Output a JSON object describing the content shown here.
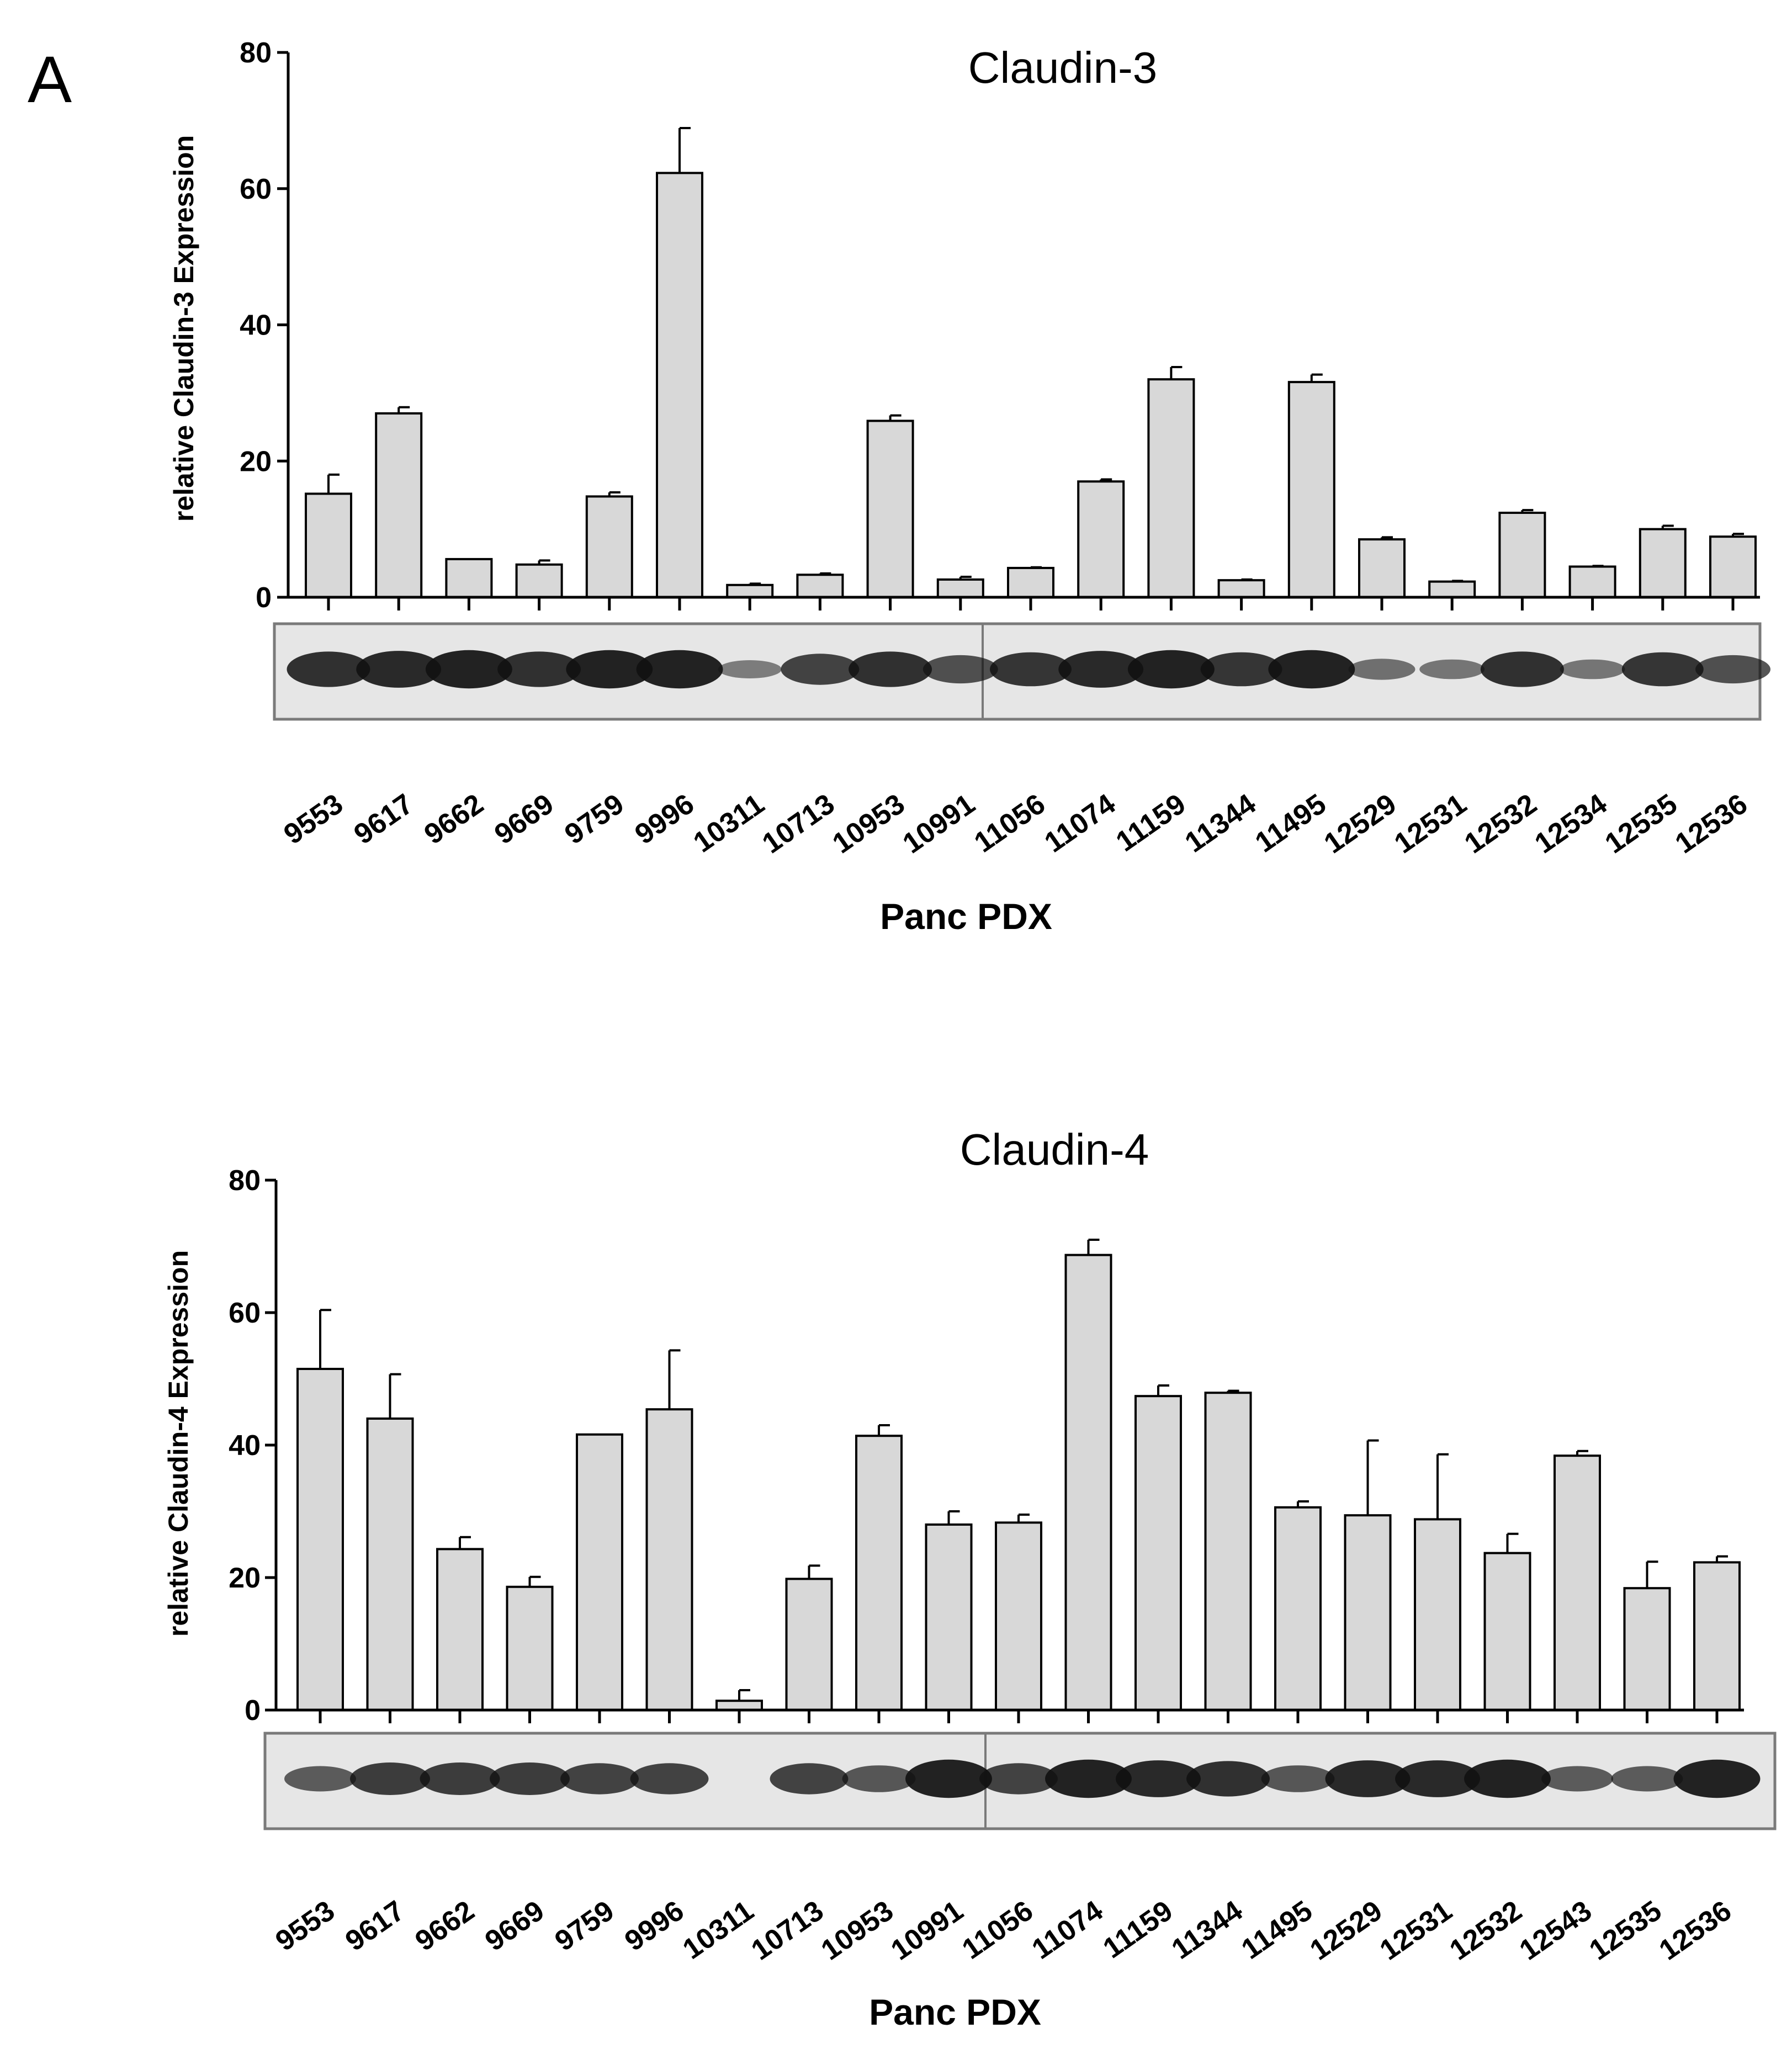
{
  "panel_label": "A",
  "chart_data": [
    {
      "type": "bar",
      "title": "Claudin-3",
      "xlabel": "Panc PDX",
      "ylabel": "relative Claudin-3 Expression",
      "ylim": [
        0,
        80
      ],
      "yticks": [
        0,
        20,
        40,
        60,
        80
      ],
      "categories": [
        "9553",
        "9617",
        "9662",
        "9669",
        "9759",
        "9996",
        "10311",
        "10713",
        "10953",
        "10991",
        "11056",
        "11074",
        "11159",
        "11344",
        "11495",
        "12529",
        "12531",
        "12532",
        "12534",
        "12535",
        "12536"
      ],
      "values": [
        15.2,
        27.0,
        5.6,
        4.8,
        14.8,
        62.3,
        1.8,
        3.3,
        25.9,
        2.6,
        4.3,
        17.0,
        32.0,
        2.5,
        31.6,
        8.5,
        2.3,
        12.4,
        4.5,
        10.0,
        8.9
      ],
      "errors": [
        2.8,
        0.9,
        0.0,
        0.6,
        0.6,
        6.6,
        0.2,
        0.2,
        0.8,
        0.4,
        0.1,
        0.3,
        1.8,
        0.1,
        1.1,
        0.3,
        0.1,
        0.4,
        0.1,
        0.5,
        0.4
      ],
      "blot_intensity": [
        0.85,
        0.9,
        0.95,
        0.85,
        0.95,
        0.95,
        0.25,
        0.7,
        0.85,
        0.6,
        0.8,
        0.9,
        0.95,
        0.8,
        0.95,
        0.35,
        0.3,
        0.85,
        0.3,
        0.8,
        0.6
      ]
    },
    {
      "type": "bar",
      "title": "Claudin-4",
      "xlabel": "Panc PDX",
      "ylabel": "relative Claudin-4 Expression",
      "ylim": [
        0,
        80
      ],
      "yticks": [
        0,
        20,
        40,
        60,
        80
      ],
      "categories": [
        "9553",
        "9617",
        "9662",
        "9669",
        "9759",
        "9996",
        "10311",
        "10713",
        "10953",
        "10991",
        "11056",
        "11074",
        "11159",
        "11344",
        "11495",
        "12529",
        "12531",
        "12532",
        "12543",
        "12535",
        "12536"
      ],
      "values": [
        51.5,
        44.0,
        24.3,
        18.6,
        41.6,
        45.4,
        1.4,
        19.8,
        41.4,
        28.0,
        28.3,
        68.7,
        47.4,
        47.9,
        30.6,
        29.4,
        28.8,
        23.7,
        38.4,
        18.4,
        22.3
      ],
      "errors": [
        8.9,
        6.7,
        1.8,
        1.5,
        0.0,
        8.9,
        1.6,
        2.0,
        1.6,
        2.0,
        1.2,
        2.3,
        1.6,
        0.3,
        0.9,
        11.3,
        9.8,
        2.9,
        0.7,
        4.0,
        0.9
      ],
      "blot_intensity": [
        0.5,
        0.75,
        0.75,
        0.75,
        0.7,
        0.7,
        0.0,
        0.7,
        0.55,
        0.95,
        0.7,
        0.95,
        0.9,
        0.85,
        0.55,
        0.9,
        0.9,
        0.95,
        0.5,
        0.5,
        0.95
      ]
    }
  ]
}
